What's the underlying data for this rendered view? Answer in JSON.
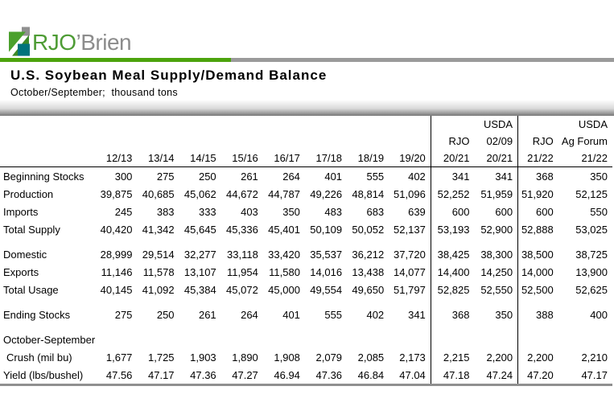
{
  "brand": {
    "name_green": "RJO",
    "name_gray": "’Brien",
    "logo_icon": "rjo-pennant-logo",
    "colors": {
      "green_bar": "#4ca30d",
      "gray_bar": "#9a9a9a",
      "logo_green": "#4e9c35",
      "logo_teal": "#00737c",
      "logo_gray": "#8c8c8c"
    }
  },
  "header": {
    "title": "U.S. Soybean Meal Supply/Demand Balance",
    "subtitle": "October/September;  thousand tons"
  },
  "table": {
    "header_rows": [
      [
        "",
        "",
        "",
        "",
        "",
        "",
        "",
        "",
        "",
        "",
        "USDA",
        "",
        "USDA"
      ],
      [
        "",
        "",
        "",
        "",
        "",
        "",
        "",
        "",
        "",
        "RJO",
        "02/09",
        "RJO",
        "Ag Forum"
      ],
      [
        "",
        "12/13",
        "13/14",
        "14/15",
        "15/16",
        "16/17",
        "17/18",
        "18/19",
        "19/20",
        "20/21",
        "20/21",
        "21/22",
        "21/22"
      ]
    ],
    "divider_value_cols": [
      8,
      10
    ],
    "rows": [
      {
        "label": "Beginning Stocks",
        "values": [
          "300",
          "275",
          "250",
          "261",
          "264",
          "401",
          "555",
          "402",
          "341",
          "341",
          "368",
          "350"
        ]
      },
      {
        "label": "Production",
        "values": [
          "39,875",
          "40,685",
          "45,062",
          "44,672",
          "44,787",
          "49,226",
          "48,814",
          "51,096",
          "52,252",
          "51,959",
          "51,920",
          "52,125"
        ]
      },
      {
        "label": "Imports",
        "values": [
          "245",
          "383",
          "333",
          "403",
          "350",
          "483",
          "683",
          "639",
          "600",
          "600",
          "600",
          "550"
        ]
      },
      {
        "label": "Total Supply",
        "values": [
          "40,420",
          "41,342",
          "45,645",
          "45,336",
          "45,401",
          "50,109",
          "50,052",
          "52,137",
          "53,193",
          "52,900",
          "52,888",
          "53,025"
        ]
      },
      {
        "spacer": true
      },
      {
        "label": "Domestic",
        "values": [
          "28,999",
          "29,514",
          "32,277",
          "33,118",
          "33,420",
          "35,537",
          "36,212",
          "37,720",
          "38,425",
          "38,300",
          "38,500",
          "38,725"
        ]
      },
      {
        "label": "Exports",
        "values": [
          "11,146",
          "11,578",
          "13,107",
          "11,954",
          "11,580",
          "14,016",
          "13,438",
          "14,077",
          "14,400",
          "14,250",
          "14,000",
          "13,900"
        ]
      },
      {
        "label": "Total Usage",
        "values": [
          "40,145",
          "41,092",
          "45,384",
          "45,072",
          "45,000",
          "49,554",
          "49,650",
          "51,797",
          "52,825",
          "52,550",
          "52,500",
          "52,625"
        ]
      },
      {
        "spacer": true
      },
      {
        "label": "Ending Stocks",
        "values": [
          "275",
          "250",
          "261",
          "264",
          "401",
          "555",
          "402",
          "341",
          "368",
          "350",
          "388",
          "400"
        ]
      },
      {
        "spacer": true
      },
      {
        "label": "October-September",
        "section": true,
        "values": [
          "",
          "",
          "",
          "",
          "",
          "",
          "",
          "",
          "",
          "",
          "",
          ""
        ]
      },
      {
        "label": "Crush (mil bu)",
        "indent": true,
        "values": [
          "1,677",
          "1,725",
          "1,903",
          "1,890",
          "1,908",
          "2,079",
          "2,085",
          "2,173",
          "2,215",
          "2,200",
          "2,200",
          "2,210"
        ]
      },
      {
        "label": "Yield (lbs/bushel)",
        "values": [
          "47.56",
          "47.17",
          "47.36",
          "47.27",
          "46.94",
          "47.36",
          "46.84",
          "47.04",
          "47.18",
          "47.24",
          "47.20",
          "47.17"
        ]
      }
    ]
  }
}
